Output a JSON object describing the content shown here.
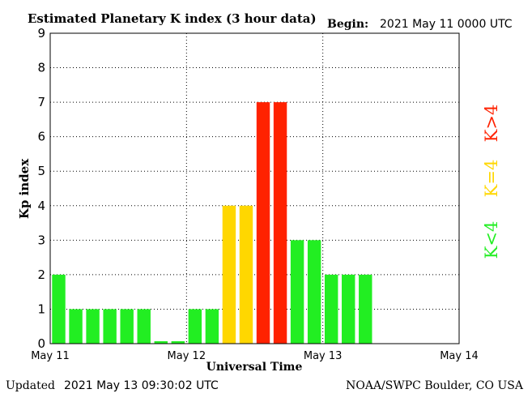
{
  "header": {
    "title": "Estimated Planetary K index (3 hour data)",
    "begin_label": "Begin:",
    "begin_value": "2021 May 11 0000 UTC"
  },
  "footer": {
    "updated_label": "Updated",
    "updated_value": "2021 May 13 09:30:02 UTC",
    "source": "NOAA/SWPC Boulder, CO USA"
  },
  "legend": {
    "k_gt_4": {
      "label": "K>4",
      "color": "#ff2200"
    },
    "k_eq_4": {
      "label": "K=4",
      "color": "#ffd700"
    },
    "k_lt_4": {
      "label": "K<4",
      "color": "#22ee22"
    }
  },
  "chart_data": {
    "type": "bar",
    "title": "Estimated Planetary K index (3 hour data)",
    "xlabel": "Universal Time",
    "ylabel": "Kp index",
    "ylim": [
      0,
      9
    ],
    "yticks": [
      0,
      1,
      2,
      3,
      4,
      5,
      6,
      7,
      8,
      9
    ],
    "xticks": [
      "May 11",
      "May 12",
      "May 13",
      "May 14"
    ],
    "grid": true,
    "bar_interval_hours": 3,
    "values": [
      2,
      1,
      1,
      1,
      1,
      1,
      0.07,
      0.07,
      1,
      1,
      4,
      4,
      7,
      7,
      3,
      3,
      2,
      2,
      2
    ],
    "colors": {
      "low": "#22ee22",
      "equal": "#ffd700",
      "high": "#ff2200"
    }
  }
}
